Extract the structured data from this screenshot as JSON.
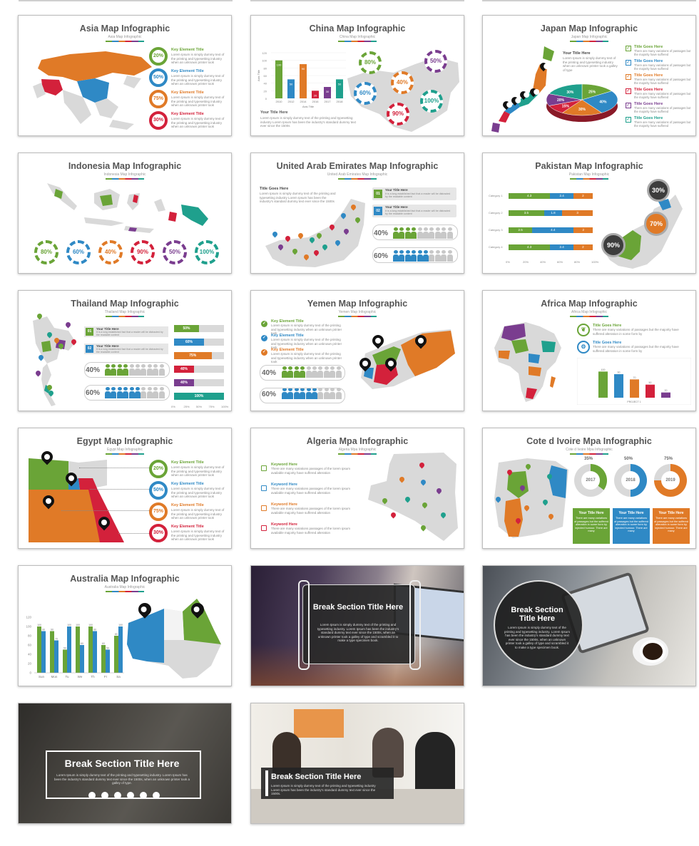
{
  "slides": {
    "asia": {
      "title": "Asia Map Infographic",
      "subtitle": "Asia Map Infographic",
      "key_label": "Key Element Title",
      "body": "Lorem Ipsum is simply dummy text of the printing and typesetting industry when an unknown printer took",
      "rings": [
        "20%",
        "50%",
        "75%",
        "30%"
      ]
    },
    "china": {
      "title": "China Map Infographic",
      "subtitle": "China Map Infographic",
      "your_title": "Your Title Here",
      "body": "Lorem Ipsum is simply dummy text of the printing and typesetting industry Lorem Ipsum has been the industry's standard dummy text ever since the 1500s",
      "axis_title": "Axis Title",
      "y_ticks": [
        "120",
        "100",
        "80",
        "60",
        "40",
        "20",
        "0"
      ],
      "years": [
        "2010",
        "2012",
        "2014",
        "2016",
        "2017",
        "2018"
      ],
      "bar_values": [
        "100",
        "50",
        "90",
        "20",
        "30",
        "50"
      ],
      "rings": [
        "80%",
        "50%",
        "60%",
        "40%",
        "100%",
        "90%"
      ]
    },
    "japan": {
      "title": "Japan Map Infographic",
      "subtitle": "Japan Map Infographic",
      "your_title": "Your Title Here",
      "body": "Lorem Ipsum is simply dummy text of the printing and typesetting industry when an unknown printer took a galley of type",
      "goes_label": "Title Goes Here",
      "goes_body": "There are many variations of passages but the majority have suffered",
      "pie": [
        "25%",
        "40%",
        "30%",
        "15%",
        "20%",
        "30%"
      ]
    },
    "indonesia": {
      "title": "Indonesia Map Infographic",
      "subtitle": "Indonesia Map Infographic",
      "rings": [
        "80%",
        "60%",
        "40%",
        "90%",
        "50%",
        "100%"
      ]
    },
    "uae": {
      "title": "United Arab Emirates Map Infographic",
      "subtitle": "United Arab Emirates Map Infographic",
      "goes": "Title Goes Here",
      "body": "Lorem Ipsum is simply dummy text of the printing and typesetting industry Lorem Ipsum has been the industry's standard dummy text ever since the 1500s",
      "n1": "01",
      "n2": "02",
      "your_title": "Your Title Here",
      "item_body": "It is a long established fact that a reader will be distracted by the readable content",
      "p1": "40%",
      "p2": "60%"
    },
    "pakistan": {
      "title": "Pakistan Map Infographic",
      "subtitle": "Pakistan Map Infographic",
      "categories": [
        "Category 1",
        "Category 2",
        "Category 3",
        "Category 4"
      ],
      "rows": [
        [
          "4.3",
          "2.4",
          "2"
        ],
        [
          "3.5",
          "1.8",
          "3"
        ],
        [
          "2.5",
          "4.4",
          "2"
        ],
        [
          "4.3",
          "2.4",
          "2"
        ]
      ],
      "x_ticks": [
        "0%",
        "20%",
        "40%",
        "60%",
        "80%",
        "100%"
      ],
      "circles": [
        "30%",
        "70%",
        "90%"
      ]
    },
    "thailand": {
      "title": "Thailand Map Infographic",
      "subtitle": "Thailand Map Infographic",
      "n1": "01",
      "n2": "02",
      "your_title": "Your Title Here",
      "item_body": "It is a long established fact that a reader will be distracted by the readable content",
      "p1": "40%",
      "p2": "60%",
      "bars": [
        "50%",
        "60%",
        "75%",
        "40%",
        "40%",
        "100%"
      ],
      "x_ticks": [
        "0%",
        "25%",
        "50%",
        "75%",
        "100%"
      ]
    },
    "yemen": {
      "title": "Yemen Map Infographic",
      "subtitle": "Yemen Map Infographic",
      "key_label": "Key Element Title",
      "body": "Lorem Ipsum is simply dummy text of the printing and typesetting industry when an unknown printer took",
      "p1": "40%",
      "p2": "60%"
    },
    "africa": {
      "title": "Africa Map Infographic",
      "subtitle": "Africa Map Infographic",
      "goes": "Title Goes Here",
      "body": "There are many variations of passages but the majority have suffered alteration in some form by",
      "bars": [
        "100",
        "90",
        "70",
        "50",
        "20"
      ],
      "project": "PROJECT 1"
    },
    "egypt": {
      "title": "Egypt Map Infographic",
      "subtitle": "Egypt Map Infographic",
      "key_label": "Key Element Title",
      "body": "Lorem Ipsum is simply dummy text of the printing and typesetting industry when an unknown printer took",
      "rings": [
        "20%",
        "50%",
        "75%",
        "30%"
      ]
    },
    "algeria": {
      "title": "Algeria Mpa Infographic",
      "subtitle": "Algeria Mpa Infographic",
      "keyword": "Keyword Here",
      "body": "There are many variations passages of the lorem ipsum available majority have suffered alteration"
    },
    "cote": {
      "title": "Cote d Ivoire Mpa Infographic",
      "subtitle": "Cote d Ivoire Mpa Infographic",
      "percents": [
        "35%",
        "50%",
        "75%"
      ],
      "years": [
        "2017",
        "2018",
        "2019"
      ],
      "your_title": "Your Title Here",
      "body": "There are many variations of passages but the suffered alteration in some form by injected humour. There are many"
    },
    "australia": {
      "title": "Australia Map Infographic",
      "subtitle": "Australia Map Infographic",
      "days": [
        "Sun",
        "Mon",
        "Tu",
        "We",
        "Th",
        "Fr",
        "Sa"
      ],
      "y_ticks": [
        "120",
        "100",
        "80",
        "60",
        "40",
        "20",
        "0"
      ],
      "green": [
        100,
        90,
        50,
        100,
        100,
        60,
        80
      ],
      "blue": [
        90,
        70,
        100,
        60,
        90,
        50,
        100
      ]
    },
    "break1": {
      "title": "Break Section Title Here",
      "body": "Lorem Ipsum is simply dummy text of the printing and typesetting industry. Lorem Ipsum has been the industry's standard dummy text ever since the 1500s, when an unknown printer took a galley of type and scrambled it to make a type specimen book."
    },
    "break2": {
      "title": "Break Section Title Here",
      "body": "Lorem Ipsum is simply dummy text of the printing and typesetting industry. Lorem Ipsum has been the industry's standard dummy text ever since the 1500s, when an unknown printer took a galley of type and scrambled it to make a type specimen book."
    },
    "break3": {
      "title": "Break Section Title Here",
      "body": "Lorem Ipsum is simply dummy text of the printing and typesetting industry. Lorem Ipsum has been the industry's standard dummy text ever since the 1500s, when an unknown printer took a galley of type."
    },
    "break4": {
      "title": "Break Section Title Here",
      "body": "Lorem Ipsum is simply dummy text of the printing and typesetting industry Lorem Ipsum has been the industry's standard dummy text ever since the 1500s."
    }
  },
  "colors": {
    "green": "#6aa437",
    "blue": "#2f89c5",
    "orange": "#e07a27",
    "red": "#d3213b",
    "purple": "#7a3d8f",
    "teal": "#1fa08d",
    "gray": "#d9d9d9"
  }
}
